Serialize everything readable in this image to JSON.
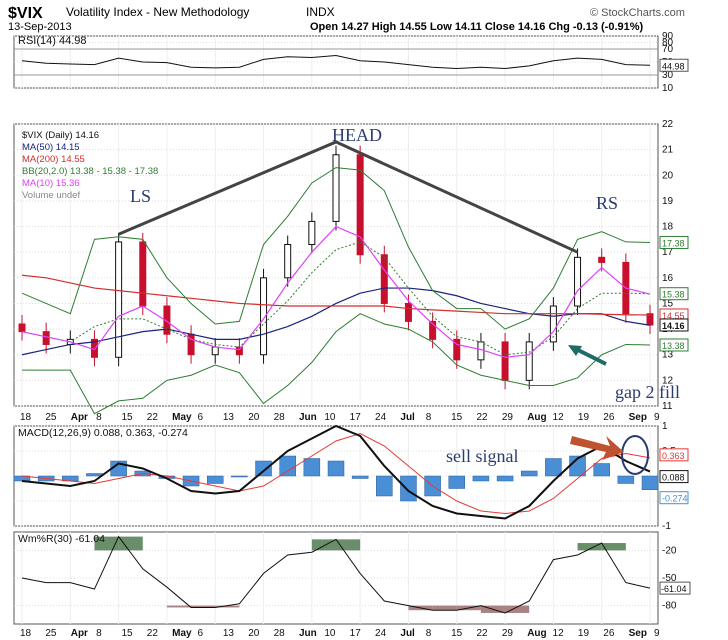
{
  "header": {
    "symbol": "$VIX",
    "name": "Volatility Index - New Methodology",
    "exchange": "INDX",
    "date": "13-Sep-2013",
    "ohlc": "Open 14.27  High 14.55  Low 14.11  Close 14.16  Chg -0.13 (-0.91%)",
    "watermark": "© StockCharts.com"
  },
  "colors": {
    "up": "#111111",
    "down": "#c8102e",
    "ma50": "#1a237e",
    "ma200": "#d32f2f",
    "bb": "#2e7d32",
    "ma10": "#e040fb",
    "volume": "#888888",
    "macd": "#111111",
    "signal": "#e53935",
    "hist": "#4a8fd6",
    "annotation": "#2a3b6e",
    "arrow": "#c0532f",
    "teal": "#1f6b66"
  },
  "chart_data": [
    {
      "type": "line",
      "title": "RSI(14) 44.98",
      "ylim": [
        10,
        90
      ],
      "yticks": [
        90,
        80,
        70,
        50,
        30,
        10
      ],
      "value_label": "44.98",
      "x": [
        "Mar18",
        "Mar25",
        "Apr1",
        "Apr8",
        "Apr15",
        "Apr22",
        "Apr29",
        "May6",
        "May13",
        "May20",
        "May28",
        "Jun3",
        "Jun10",
        "Jun17",
        "Jun24",
        "Jul1",
        "Jul8",
        "Jul15",
        "Jul22",
        "Jul29",
        "Aug5",
        "Aug12",
        "Aug19",
        "Aug26",
        "Sep3",
        "Sep9",
        "Sep13"
      ],
      "series": [
        {
          "values": [
            52,
            48,
            47,
            46,
            56,
            50,
            49,
            42,
            41,
            42,
            54,
            58,
            57,
            60,
            52,
            50,
            46,
            42,
            40,
            42,
            40,
            44,
            52,
            56,
            54,
            46,
            45
          ]
        }
      ]
    },
    {
      "type": "line",
      "title": "$VIX (Daily) 14.16",
      "ylim": [
        11,
        22
      ],
      "yticks": [
        22,
        21,
        20,
        19,
        18,
        17,
        16,
        15,
        14,
        13,
        12,
        11
      ],
      "x": [
        "Mar18",
        "Mar25",
        "Apr1",
        "Apr8",
        "Apr15",
        "Apr22",
        "Apr29",
        "May6",
        "May13",
        "May20",
        "May28",
        "Jun3",
        "Jun10",
        "Jun17",
        "Jun24",
        "Jul1",
        "Jul8",
        "Jul15",
        "Jul22",
        "Jul29",
        "Aug5",
        "Aug12",
        "Aug19",
        "Aug26",
        "Sep3",
        "Sep9",
        "Sep13"
      ],
      "series": [
        {
          "name": "$VIX (Daily) 14.16",
          "values": [
            13.9,
            13.4,
            13.6,
            12.9,
            17.4,
            14.9,
            13.8,
            13.0,
            13.3,
            13.0,
            16.0,
            17.3,
            18.2,
            20.8,
            16.9,
            15.0,
            14.3,
            13.6,
            12.8,
            13.5,
            12.0,
            13.5,
            14.9,
            16.8,
            16.6,
            14.6,
            14.16
          ]
        },
        {
          "name": "MA(50) 14.15",
          "values": [
            13.0,
            13.2,
            13.4,
            13.5,
            13.7,
            13.9,
            14.0,
            13.8,
            13.6,
            13.6,
            13.8,
            14.1,
            14.5,
            15.0,
            15.4,
            15.6,
            15.6,
            15.5,
            15.3,
            15.0,
            14.8,
            14.6,
            14.5,
            14.6,
            14.6,
            14.3,
            14.15
          ]
        },
        {
          "name": "MA(200) 14.55",
          "values": [
            16.1,
            16.0,
            15.8,
            15.6,
            15.5,
            15.4,
            15.3,
            15.2,
            15.1,
            15.0,
            14.95,
            14.9,
            14.9,
            14.9,
            14.9,
            14.9,
            14.8,
            14.75,
            14.7,
            14.65,
            14.6,
            14.6,
            14.6,
            14.6,
            14.58,
            14.56,
            14.55
          ]
        },
        {
          "name": "BB upper 17.38",
          "values": [
            15.4,
            15.0,
            14.6,
            17.5,
            17.6,
            17.5,
            16.0,
            15.0,
            14.2,
            14.3,
            17.3,
            18.4,
            19.7,
            20.3,
            20.2,
            19.4,
            17.2,
            15.5,
            14.8,
            14.8,
            14.0,
            14.4,
            15.6,
            17.5,
            17.8,
            17.4,
            17.38
          ]
        },
        {
          "name": "BB mid 15.38",
          "values": [
            13.9,
            13.7,
            13.5,
            14.1,
            14.4,
            14.4,
            14.0,
            13.6,
            13.4,
            13.3,
            14.2,
            15.1,
            16.2,
            17.1,
            17.4,
            16.8,
            15.6,
            14.5,
            13.7,
            13.5,
            13.0,
            13.1,
            13.7,
            14.8,
            15.4,
            15.4,
            15.38
          ]
        },
        {
          "name": "BB lower 13.38",
          "values": [
            12.4,
            12.4,
            12.4,
            10.7,
            11.2,
            11.3,
            12.0,
            12.2,
            12.6,
            12.3,
            11.1,
            11.8,
            12.7,
            13.9,
            14.6,
            14.2,
            14.0,
            13.5,
            12.6,
            12.2,
            12.0,
            11.8,
            11.8,
            12.1,
            13.0,
            13.4,
            13.38
          ]
        },
        {
          "name": "MA(10) 15.36",
          "values": [
            13.9,
            13.7,
            13.5,
            13.2,
            14.5,
            14.9,
            14.3,
            13.6,
            13.3,
            13.2,
            14.4,
            15.8,
            17.0,
            18.0,
            17.6,
            16.3,
            15.1,
            14.2,
            13.4,
            13.2,
            12.9,
            13.0,
            13.9,
            15.5,
            16.4,
            15.6,
            15.36
          ]
        }
      ],
      "legend": [
        "$VIX (Daily) 14.16",
        "MA(50) 14.15",
        "MA(200) 14.55",
        "BB(20,2.0) 13.38 - 15.38 - 17.38",
        "MA(10) 15.36",
        "Volume undef"
      ],
      "price_tags": [
        "17.38",
        "15.38",
        "14.55",
        "14.16",
        "13.38"
      ]
    },
    {
      "type": "line",
      "title": "MACD(12,26,9) 0.088, 0.363, -0.274",
      "ylim": [
        -1.0,
        1.0
      ],
      "yticks": [
        1.0,
        0.5,
        0.0,
        -0.5,
        -1.0
      ],
      "x": [
        "Mar18",
        "Mar25",
        "Apr1",
        "Apr8",
        "Apr15",
        "Apr22",
        "Apr29",
        "May6",
        "May13",
        "May20",
        "May28",
        "Jun3",
        "Jun10",
        "Jun17",
        "Jun24",
        "Jul1",
        "Jul8",
        "Jul15",
        "Jul22",
        "Jul29",
        "Aug5",
        "Aug12",
        "Aug19",
        "Aug26",
        "Sep3",
        "Sep9",
        "Sep13"
      ],
      "series": [
        {
          "name": "MACD",
          "values": [
            -0.1,
            -0.15,
            -0.2,
            -0.1,
            0.25,
            0.15,
            -0.05,
            -0.3,
            -0.35,
            -0.3,
            0.1,
            0.5,
            0.75,
            1.0,
            0.8,
            0.2,
            -0.3,
            -0.6,
            -0.75,
            -0.8,
            -0.85,
            -0.6,
            -0.1,
            0.35,
            0.6,
            0.3,
            0.088
          ]
        },
        {
          "name": "Signal",
          "values": [
            0.0,
            -0.05,
            -0.1,
            -0.15,
            -0.05,
            0.05,
            0.0,
            -0.1,
            -0.2,
            -0.3,
            -0.2,
            0.1,
            0.4,
            0.7,
            0.85,
            0.6,
            0.2,
            -0.2,
            -0.5,
            -0.7,
            -0.75,
            -0.7,
            -0.45,
            -0.05,
            0.35,
            0.45,
            0.363
          ]
        },
        {
          "name": "Histogram",
          "values": [
            -0.1,
            -0.1,
            -0.1,
            0.05,
            0.3,
            0.1,
            -0.05,
            -0.2,
            -0.15,
            0.0,
            0.3,
            0.4,
            0.35,
            0.3,
            -0.05,
            -0.4,
            -0.5,
            -0.4,
            -0.25,
            -0.1,
            -0.1,
            0.1,
            0.35,
            0.4,
            0.25,
            -0.15,
            -0.274
          ]
        }
      ],
      "tags": [
        "0.363",
        "0.088",
        "-0.274"
      ]
    },
    {
      "type": "line",
      "title": "Wm%R(30) -61.04",
      "ylim": [
        -100,
        0
      ],
      "yticks": [
        -20,
        -50,
        -80
      ],
      "x": [
        "Mar18",
        "Mar25",
        "Apr1",
        "Apr8",
        "Apr15",
        "Apr22",
        "Apr29",
        "May6",
        "May13",
        "May20",
        "May28",
        "Jun3",
        "Jun10",
        "Jun17",
        "Jun24",
        "Jul1",
        "Jul8",
        "Jul15",
        "Jul22",
        "Jul29",
        "Aug5",
        "Aug12",
        "Aug19",
        "Aug26",
        "Sep3",
        "Sep9",
        "Sep13"
      ],
      "series": [
        {
          "values": [
            -50,
            -55,
            -55,
            -62,
            -5,
            -40,
            -60,
            -82,
            -82,
            -78,
            -45,
            -25,
            -22,
            -8,
            -45,
            -75,
            -80,
            -85,
            -85,
            -80,
            -88,
            -75,
            -30,
            -25,
            -12,
            -55,
            -61.04
          ]
        }
      ],
      "value_label": "-61.04"
    }
  ],
  "x_axis": {
    "labels": [
      "18",
      "25",
      "Apr",
      "8",
      "15",
      "22",
      "May",
      "6",
      "13",
      "20",
      "28",
      "Jun",
      "10",
      "17",
      "24",
      "Jul",
      "8",
      "15",
      "22",
      "29",
      "Aug",
      "12",
      "19",
      "26",
      "Sep",
      "9"
    ]
  },
  "annotations": {
    "ls": "LS",
    "head": "HEAD",
    "rs": "RS",
    "sell_signal": "sell signal",
    "gap_fill": "gap 2 fill"
  }
}
